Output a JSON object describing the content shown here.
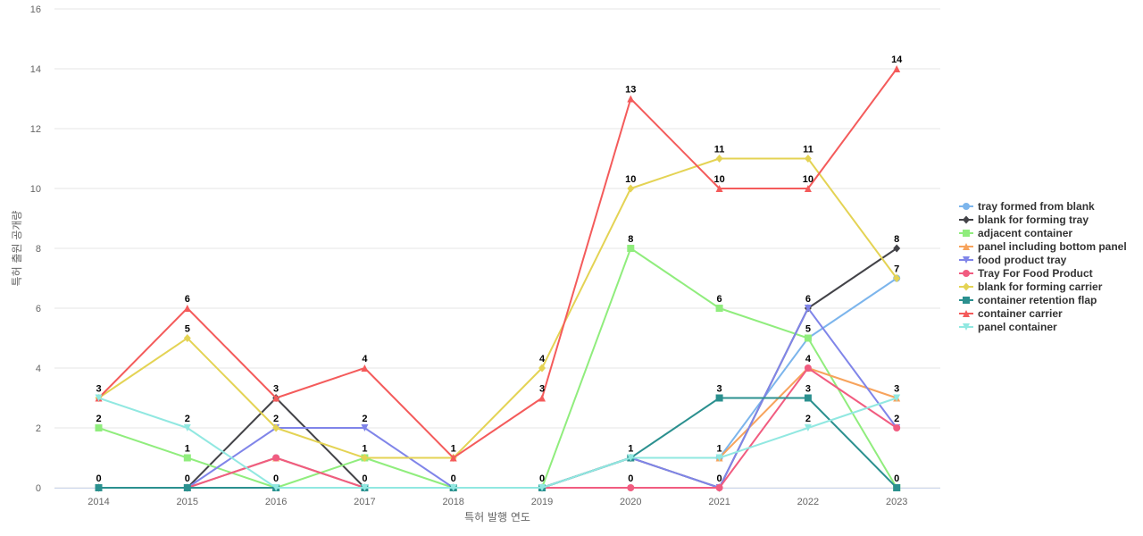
{
  "chart_data": {
    "type": "line",
    "xlabel": "특허 발행 연도",
    "ylabel": "특허 출원 공개량",
    "x": [
      "2014",
      "2015",
      "2016",
      "2017",
      "2018",
      "2019",
      "2020",
      "2021",
      "2022",
      "2023"
    ],
    "ylim": [
      0,
      16
    ],
    "yticks": [
      0,
      2,
      4,
      6,
      8,
      10,
      12,
      14,
      16
    ],
    "grid": true,
    "legend_position": "right",
    "series": [
      {
        "name": "tray formed from blank",
        "color": "#7cb5ec",
        "marker": "circle",
        "values": [
          0,
          0,
          1,
          0,
          0,
          0,
          1,
          1,
          5,
          7
        ],
        "labels": [
          null,
          null,
          null,
          null,
          null,
          null,
          null,
          null,
          null,
          null
        ]
      },
      {
        "name": "blank for forming tray",
        "color": "#434348",
        "marker": "diamond",
        "values": [
          0,
          0,
          3,
          0,
          0,
          0,
          1,
          0,
          6,
          8
        ],
        "labels": [
          null,
          null,
          null,
          null,
          null,
          null,
          null,
          null,
          null,
          8
        ]
      },
      {
        "name": "adjacent container",
        "color": "#90ed7d",
        "marker": "square",
        "values": [
          2,
          1,
          0,
          1,
          0,
          0,
          8,
          6,
          5,
          0
        ],
        "labels": [
          2,
          1,
          null,
          1,
          null,
          null,
          8,
          6,
          5,
          null
        ]
      },
      {
        "name": "panel including bottom panel",
        "color": "#f7a35c",
        "marker": "triangle",
        "values": [
          0,
          0,
          1,
          0,
          0,
          0,
          1,
          1,
          4,
          3
        ],
        "labels": [
          null,
          null,
          null,
          null,
          null,
          null,
          null,
          null,
          null,
          null
        ]
      },
      {
        "name": "food product tray",
        "color": "#8085e9",
        "marker": "triangle-down",
        "values": [
          0,
          0,
          2,
          2,
          0,
          0,
          1,
          0,
          6,
          2
        ],
        "labels": [
          null,
          null,
          null,
          2,
          null,
          null,
          null,
          null,
          6,
          null
        ]
      },
      {
        "name": "Tray For Food Product",
        "color": "#f15c80",
        "marker": "circle",
        "values": [
          0,
          0,
          1,
          0,
          0,
          0,
          0,
          0,
          4,
          2
        ],
        "labels": [
          null,
          null,
          null,
          null,
          null,
          null,
          0,
          0,
          4,
          2
        ]
      },
      {
        "name": "blank for forming carrier",
        "color": "#e4d354",
        "marker": "diamond",
        "values": [
          3,
          5,
          2,
          1,
          1,
          4,
          10,
          11,
          11,
          7
        ],
        "labels": [
          null,
          5,
          2,
          null,
          null,
          4,
          10,
          11,
          11,
          7
        ]
      },
      {
        "name": "container retention flap",
        "color": "#2b908f",
        "marker": "square",
        "values": [
          0,
          0,
          0,
          0,
          0,
          0,
          1,
          3,
          3,
          0
        ],
        "labels": [
          0,
          0,
          0,
          0,
          0,
          0,
          1,
          3,
          3,
          0
        ]
      },
      {
        "name": "container carrier",
        "color": "#f45b5b",
        "marker": "triangle",
        "values": [
          3,
          6,
          3,
          4,
          1,
          3,
          13,
          10,
          10,
          14
        ],
        "labels": [
          3,
          6,
          3,
          4,
          1,
          3,
          13,
          10,
          10,
          14
        ]
      },
      {
        "name": "panel container",
        "color": "#91e8e1",
        "marker": "triangle-down",
        "values": [
          3,
          2,
          0,
          0,
          0,
          0,
          1,
          1,
          2,
          3
        ],
        "labels": [
          null,
          2,
          null,
          null,
          null,
          null,
          null,
          1,
          2,
          3
        ]
      }
    ]
  }
}
